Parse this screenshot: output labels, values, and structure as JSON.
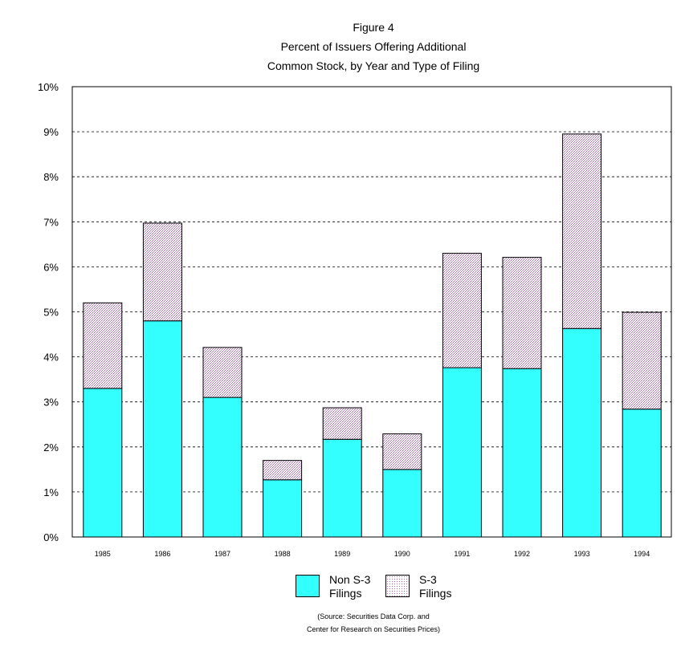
{
  "title": {
    "line1": "Figure 4",
    "line2": "Percent of Issuers Offering Additional",
    "line3": "Common Stock, by Year and Type of Filing"
  },
  "chart_data": {
    "type": "bar",
    "stacked": true,
    "categories": [
      "1985",
      "1986",
      "1987",
      "1988",
      "1989",
      "1990",
      "1991",
      "1992",
      "1993",
      "1994"
    ],
    "series": [
      {
        "name": "Non S-3 Filings",
        "values": [
          3.3,
          4.8,
          3.1,
          1.27,
          2.17,
          1.5,
          3.76,
          3.74,
          4.63,
          2.84
        ],
        "color": "#33ffff"
      },
      {
        "name": "S-3 Filings",
        "values": [
          1.9,
          2.17,
          1.11,
          0.43,
          0.7,
          0.79,
          2.54,
          2.47,
          4.32,
          2.15
        ],
        "color": "#d9b6d9"
      }
    ],
    "ylim": [
      0,
      10
    ],
    "yticks": [
      "0%",
      "1%",
      "2%",
      "3%",
      "4%",
      "5%",
      "6%",
      "7%",
      "8%",
      "9%",
      "10%"
    ],
    "grid": "horizontal-dashed",
    "legend_position": "bottom-center",
    "xlabel": "",
    "ylabel": ""
  },
  "legend": {
    "non_s3": "Non S-3\nFilings",
    "s3": "S-3\nFilings"
  },
  "source": {
    "line1": "(Source: Securities Data Corp. and",
    "line2": "Center for Research on Securities Prices)"
  }
}
